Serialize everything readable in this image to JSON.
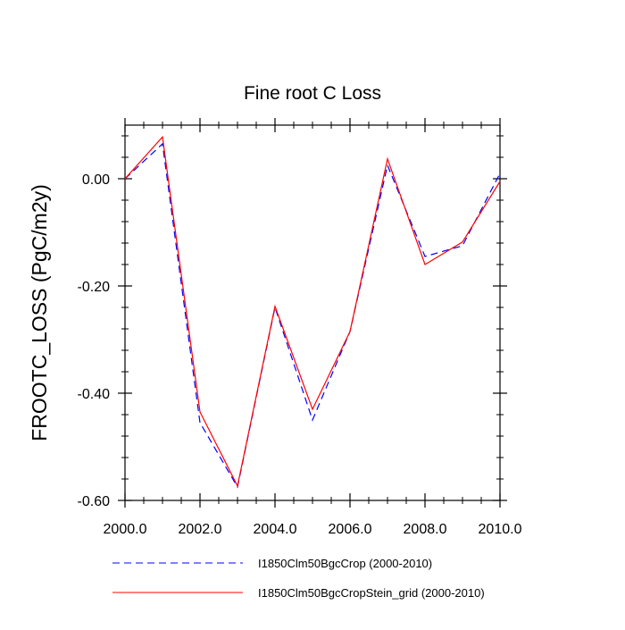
{
  "chart_data": {
    "type": "line",
    "title": "Fine root C Loss",
    "xlabel": "",
    "ylabel": "FROOTC_LOSS  (PgC/m2y)",
    "xlim": [
      2000,
      2010
    ],
    "ylim": [
      -0.6,
      0.1
    ],
    "xticks": [
      2000,
      2002,
      2004,
      2006,
      2008,
      2010
    ],
    "xtick_labels": [
      "2000.0",
      "2002.0",
      "2004.0",
      "2006.0",
      "2008.0",
      "2010.0"
    ],
    "yticks": [
      0.0,
      -0.2,
      -0.4,
      -0.6
    ],
    "ytick_labels": [
      "0.00",
      "-0.20",
      "-0.40",
      "-0.60"
    ],
    "grid": false,
    "legend_position": "bottom",
    "x": [
      2000,
      2001,
      2002,
      2003,
      2004,
      2005,
      2006,
      2007,
      2008,
      2009,
      2010
    ],
    "series": [
      {
        "name": "I1850Clm50BgcCrop (2000-2010)",
        "color": "#0000ff",
        "style": "dashed",
        "values": [
          0.0,
          0.065,
          -0.455,
          -0.575,
          -0.24,
          -0.45,
          -0.285,
          0.025,
          -0.145,
          -0.125,
          0.01
        ]
      },
      {
        "name": "I1850Clm50BgcCropStein_grid (2000-2010)",
        "color": "#ff0000",
        "style": "solid",
        "values": [
          0.0,
          0.078,
          -0.435,
          -0.573,
          -0.238,
          -0.43,
          -0.285,
          0.037,
          -0.16,
          -0.118,
          -0.005
        ]
      }
    ]
  }
}
